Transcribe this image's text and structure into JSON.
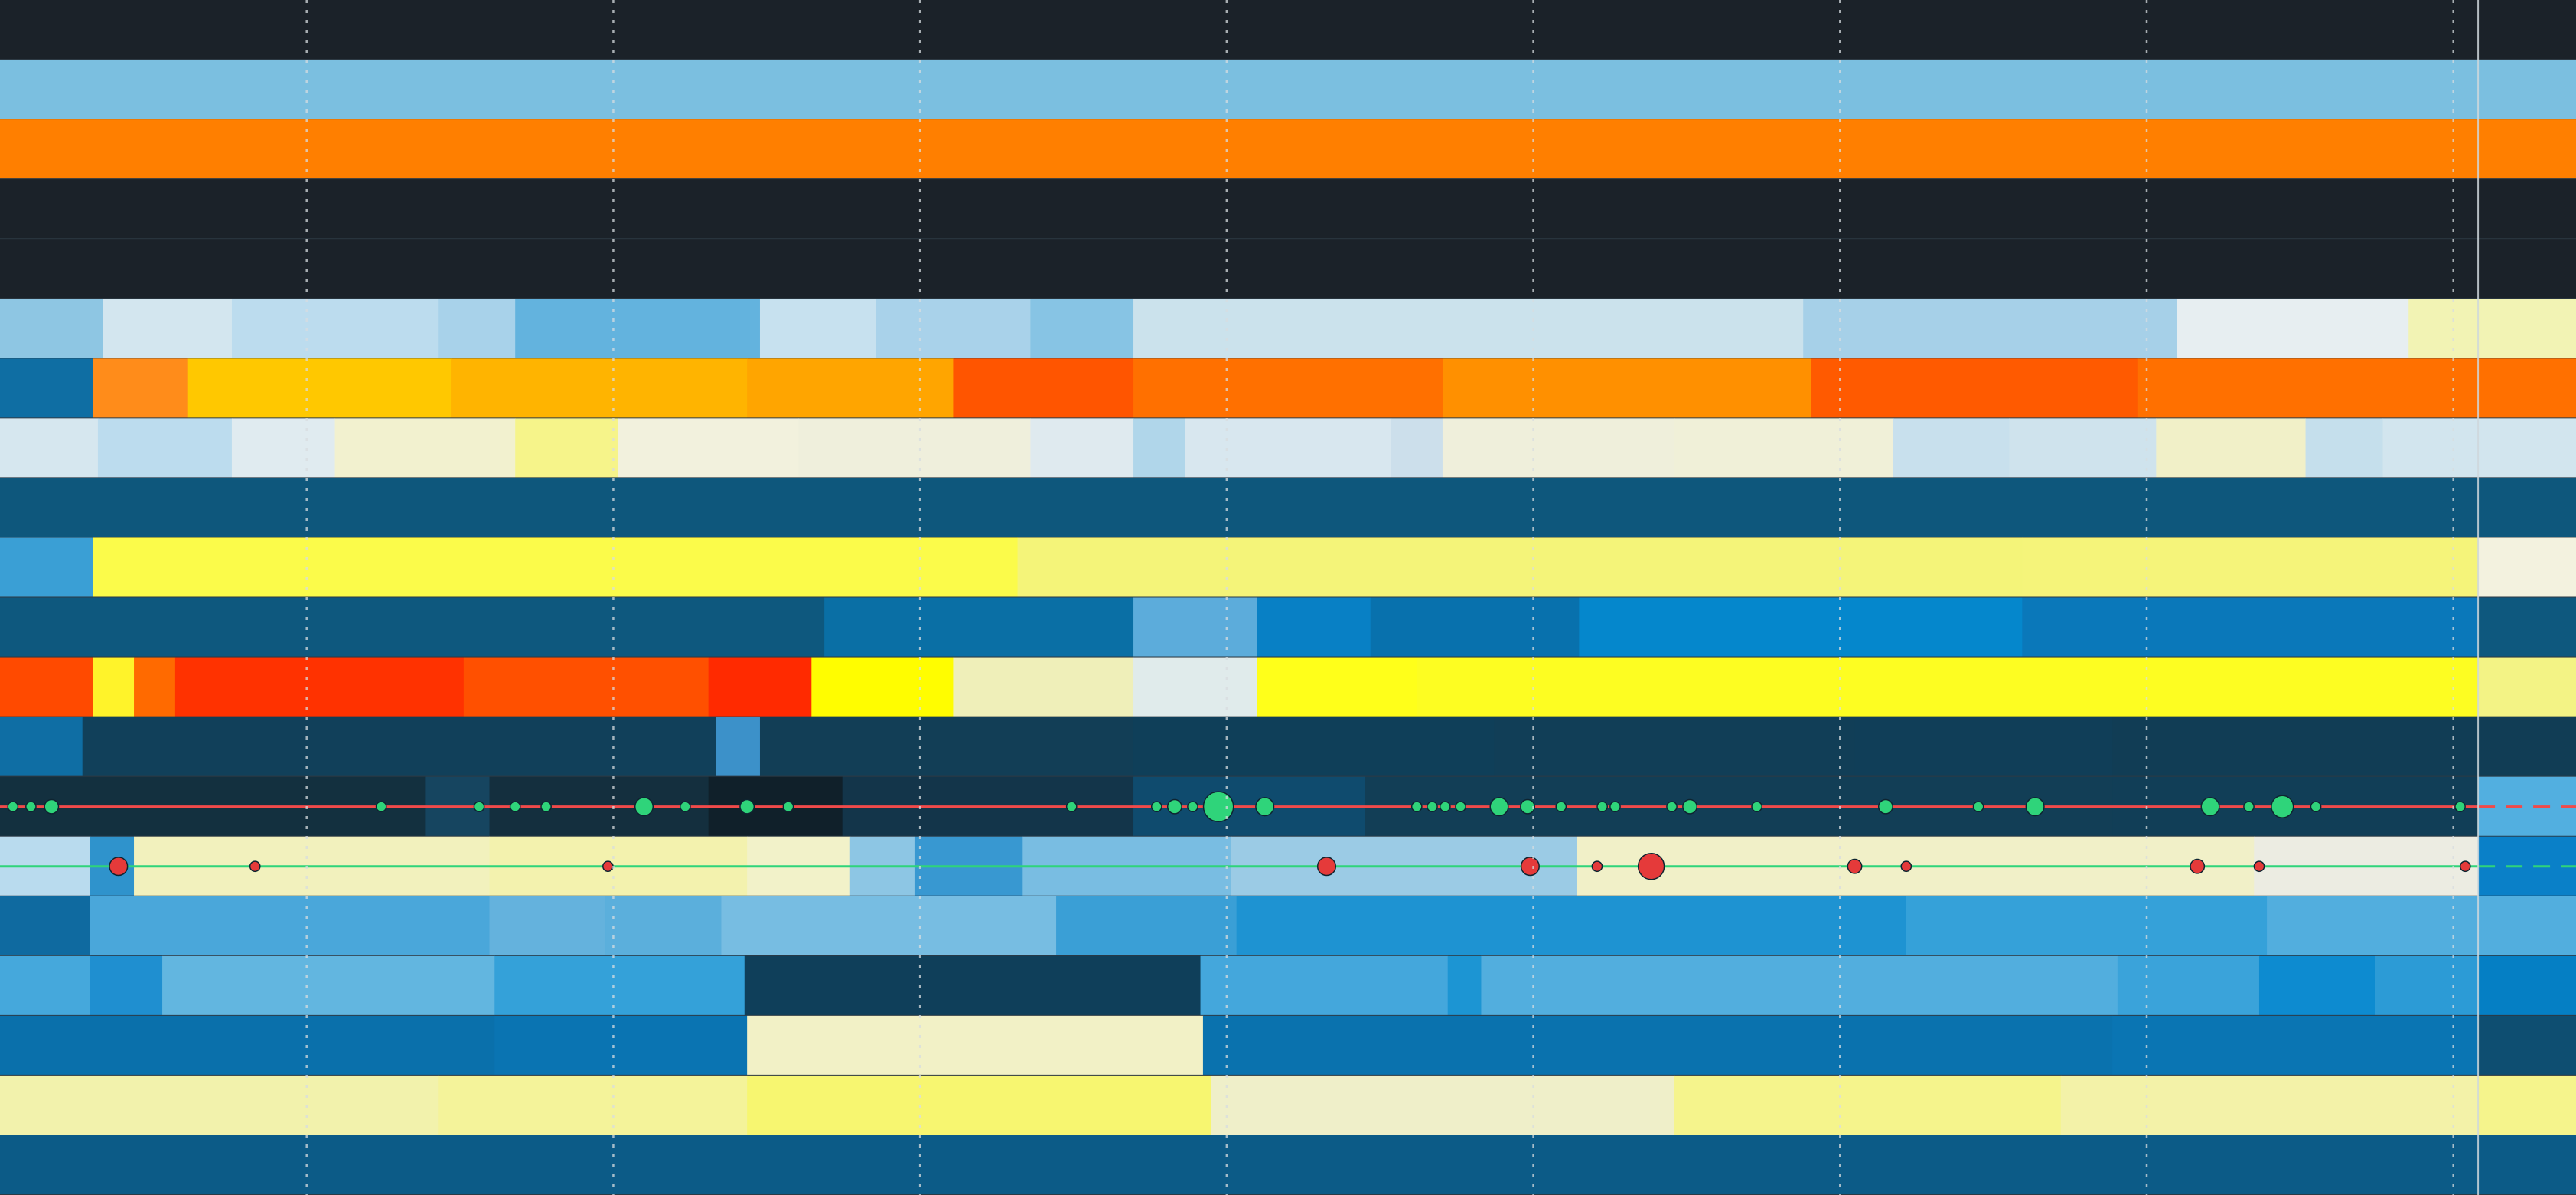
{
  "chart_data": {
    "type": "heatmap",
    "title": "",
    "xlabel": "",
    "ylabel": "",
    "grid": "vertical dashed",
    "x_range": [
      0,
      1
    ],
    "current_position": 0.962,
    "rows": [
      {
        "segments": [
          {
            "start": 0.0,
            "end": 1.0,
            "color": "#1b2229"
          }
        ]
      },
      {
        "segments": [
          {
            "start": 0.0,
            "end": 1.0,
            "color": "#7bbfe0"
          }
        ]
      },
      {
        "segments": [
          {
            "start": 0.0,
            "end": 1.0,
            "color": "#ff7f00"
          }
        ]
      },
      {
        "segments": [
          {
            "start": 0.0,
            "end": 1.0,
            "color": "#1b2229"
          }
        ]
      },
      {
        "segments": [
          {
            "start": 0.0,
            "end": 1.0,
            "color": "#1b2229"
          }
        ]
      },
      {
        "segments": [
          {
            "start": 0.0,
            "end": 0.04,
            "color": "#8ec6e3"
          },
          {
            "start": 0.04,
            "end": 0.09,
            "color": "#d3e6ef"
          },
          {
            "start": 0.09,
            "end": 0.17,
            "color": "#bcdcee"
          },
          {
            "start": 0.17,
            "end": 0.2,
            "color": "#a8d2ea"
          },
          {
            "start": 0.2,
            "end": 0.295,
            "color": "#63b3de"
          },
          {
            "start": 0.295,
            "end": 0.34,
            "color": "#c7e1ef"
          },
          {
            "start": 0.34,
            "end": 0.4,
            "color": "#a9d2ea"
          },
          {
            "start": 0.4,
            "end": 0.44,
            "color": "#87c4e4"
          },
          {
            "start": 0.44,
            "end": 0.7,
            "color": "#cbe2ec"
          },
          {
            "start": 0.7,
            "end": 0.845,
            "color": "#a6d0e8"
          },
          {
            "start": 0.845,
            "end": 0.935,
            "color": "#e7eef1"
          },
          {
            "start": 0.935,
            "end": 1.0,
            "color": "#f2f3b4"
          }
        ]
      },
      {
        "segments": [
          {
            "start": 0.0,
            "end": 0.036,
            "color": "#0f6ea3"
          },
          {
            "start": 0.036,
            "end": 0.073,
            "color": "#ff8c1a"
          },
          {
            "start": 0.073,
            "end": 0.175,
            "color": "#ffc800"
          },
          {
            "start": 0.175,
            "end": 0.29,
            "color": "#ffb400"
          },
          {
            "start": 0.29,
            "end": 0.37,
            "color": "#ffa500"
          },
          {
            "start": 0.37,
            "end": 0.44,
            "color": "#ff5500"
          },
          {
            "start": 0.44,
            "end": 0.56,
            "color": "#ff7000"
          },
          {
            "start": 0.56,
            "end": 0.703,
            "color": "#ff9000"
          },
          {
            "start": 0.703,
            "end": 0.83,
            "color": "#ff5a00"
          },
          {
            "start": 0.83,
            "end": 1.0,
            "color": "#ff7000"
          }
        ]
      },
      {
        "segments": [
          {
            "start": 0.0,
            "end": 0.038,
            "color": "#d6e7ef"
          },
          {
            "start": 0.038,
            "end": 0.09,
            "color": "#bcdcee"
          },
          {
            "start": 0.09,
            "end": 0.13,
            "color": "#e0ebf0"
          },
          {
            "start": 0.13,
            "end": 0.2,
            "color": "#f2f1cf"
          },
          {
            "start": 0.2,
            "end": 0.24,
            "color": "#f6f48a"
          },
          {
            "start": 0.24,
            "end": 0.31,
            "color": "#f2f1dd"
          },
          {
            "start": 0.31,
            "end": 0.4,
            "color": "#efefdc"
          },
          {
            "start": 0.4,
            "end": 0.44,
            "color": "#dfeaef"
          },
          {
            "start": 0.44,
            "end": 0.46,
            "color": "#b0d6ea"
          },
          {
            "start": 0.46,
            "end": 0.54,
            "color": "#d8e7ef"
          },
          {
            "start": 0.54,
            "end": 0.56,
            "color": "#ccdfeb"
          },
          {
            "start": 0.56,
            "end": 0.65,
            "color": "#efefdb"
          },
          {
            "start": 0.65,
            "end": 0.735,
            "color": "#f0f0d8"
          },
          {
            "start": 0.735,
            "end": 0.78,
            "color": "#c8e0ed"
          },
          {
            "start": 0.78,
            "end": 0.837,
            "color": "#cfe3ed"
          },
          {
            "start": 0.837,
            "end": 0.895,
            "color": "#f1f0c8"
          },
          {
            "start": 0.895,
            "end": 0.925,
            "color": "#c5dfec"
          },
          {
            "start": 0.925,
            "end": 1.0,
            "color": "#d2e5ee"
          }
        ]
      },
      {
        "segments": [
          {
            "start": 0.0,
            "end": 1.0,
            "color": "#0e577c"
          }
        ]
      },
      {
        "segments": [
          {
            "start": 0.0,
            "end": 0.036,
            "color": "#3a9fd5"
          },
          {
            "start": 0.036,
            "end": 0.395,
            "color": "#fbfb4a"
          },
          {
            "start": 0.395,
            "end": 0.785,
            "color": "#f4f479"
          },
          {
            "start": 0.785,
            "end": 0.962,
            "color": "#f5f47a"
          },
          {
            "start": 0.962,
            "end": 1.0,
            "color": "#f3f2df"
          }
        ]
      },
      {
        "segments": [
          {
            "start": 0.0,
            "end": 0.32,
            "color": "#0e587e"
          },
          {
            "start": 0.32,
            "end": 0.44,
            "color": "#0a6fa5"
          },
          {
            "start": 0.44,
            "end": 0.488,
            "color": "#5cacdb"
          },
          {
            "start": 0.488,
            "end": 0.532,
            "color": "#0880c5"
          },
          {
            "start": 0.532,
            "end": 0.613,
            "color": "#0871ad"
          },
          {
            "start": 0.613,
            "end": 0.785,
            "color": "#0587cc"
          },
          {
            "start": 0.785,
            "end": 0.962,
            "color": "#0a78ba"
          },
          {
            "start": 0.962,
            "end": 1.0,
            "color": "#0e587e"
          }
        ]
      },
      {
        "segments": [
          {
            "start": 0.0,
            "end": 0.036,
            "color": "#ff4a00"
          },
          {
            "start": 0.036,
            "end": 0.052,
            "color": "#fff32a"
          },
          {
            "start": 0.052,
            "end": 0.068,
            "color": "#ff6a00"
          },
          {
            "start": 0.068,
            "end": 0.18,
            "color": "#ff3200"
          },
          {
            "start": 0.18,
            "end": 0.275,
            "color": "#ff5000"
          },
          {
            "start": 0.275,
            "end": 0.315,
            "color": "#ff2a00"
          },
          {
            "start": 0.315,
            "end": 0.37,
            "color": "#fffd00"
          },
          {
            "start": 0.37,
            "end": 0.44,
            "color": "#efefb9"
          },
          {
            "start": 0.44,
            "end": 0.488,
            "color": "#e0ebeb"
          },
          {
            "start": 0.488,
            "end": 0.55,
            "color": "#ffff1a"
          },
          {
            "start": 0.55,
            "end": 0.962,
            "color": "#fdfd22"
          },
          {
            "start": 0.962,
            "end": 1.0,
            "color": "#f3f385"
          }
        ]
      },
      {
        "segments": [
          {
            "start": 0.0,
            "end": 0.032,
            "color": "#0f6ea4"
          },
          {
            "start": 0.032,
            "end": 0.278,
            "color": "#11405a"
          },
          {
            "start": 0.278,
            "end": 0.295,
            "color": "#3c91c9"
          },
          {
            "start": 0.295,
            "end": 0.44,
            "color": "#123e56"
          },
          {
            "start": 0.44,
            "end": 0.58,
            "color": "#0f3f59"
          },
          {
            "start": 0.58,
            "end": 0.72,
            "color": "#113e57"
          },
          {
            "start": 0.72,
            "end": 0.82,
            "color": "#103e58"
          },
          {
            "start": 0.82,
            "end": 1.0,
            "color": "#113d55"
          }
        ]
      },
      {
        "segments": [
          {
            "start": 0.0,
            "end": 0.165,
            "color": "#13303f"
          },
          {
            "start": 0.165,
            "end": 0.19,
            "color": "#164560"
          },
          {
            "start": 0.19,
            "end": 0.275,
            "color": "#142f3e"
          },
          {
            "start": 0.275,
            "end": 0.327,
            "color": "#10202a"
          },
          {
            "start": 0.327,
            "end": 0.44,
            "color": "#13354a"
          },
          {
            "start": 0.44,
            "end": 0.53,
            "color": "#0f4b6e"
          },
          {
            "start": 0.53,
            "end": 0.82,
            "color": "#123e56"
          },
          {
            "start": 0.82,
            "end": 0.962,
            "color": "#113e57"
          },
          {
            "start": 0.962,
            "end": 1.0,
            "color": "#52afe0"
          }
        ]
      },
      {
        "segments": [
          {
            "start": 0.0,
            "end": 0.035,
            "color": "#b9dbee"
          },
          {
            "start": 0.035,
            "end": 0.052,
            "color": "#2f93cc"
          },
          {
            "start": 0.052,
            "end": 0.19,
            "color": "#f2f1bd"
          },
          {
            "start": 0.19,
            "end": 0.29,
            "color": "#f3f2ae"
          },
          {
            "start": 0.29,
            "end": 0.33,
            "color": "#f2f2c9"
          },
          {
            "start": 0.33,
            "end": 0.355,
            "color": "#8dc6e4"
          },
          {
            "start": 0.355,
            "end": 0.397,
            "color": "#3898d1"
          },
          {
            "start": 0.397,
            "end": 0.478,
            "color": "#79bde2"
          },
          {
            "start": 0.478,
            "end": 0.612,
            "color": "#9bcbe5"
          },
          {
            "start": 0.612,
            "end": 0.875,
            "color": "#f1f0c8"
          },
          {
            "start": 0.875,
            "end": 0.962,
            "color": "#ecece2"
          },
          {
            "start": 0.962,
            "end": 1.0,
            "color": "#0a80c8"
          }
        ]
      },
      {
        "segments": [
          {
            "start": 0.0,
            "end": 0.035,
            "color": "#0f6aa0"
          },
          {
            "start": 0.035,
            "end": 0.19,
            "color": "#4aa7da"
          },
          {
            "start": 0.19,
            "end": 0.235,
            "color": "#64b2dd"
          },
          {
            "start": 0.235,
            "end": 0.28,
            "color": "#5bafdc"
          },
          {
            "start": 0.28,
            "end": 0.41,
            "color": "#77bde2"
          },
          {
            "start": 0.41,
            "end": 0.48,
            "color": "#3a9fd6"
          },
          {
            "start": 0.48,
            "end": 0.74,
            "color": "#1e93d2"
          },
          {
            "start": 0.74,
            "end": 0.88,
            "color": "#35a1d9"
          },
          {
            "start": 0.88,
            "end": 1.0,
            "color": "#52aede"
          }
        ]
      },
      {
        "segments": [
          {
            "start": 0.0,
            "end": 0.035,
            "color": "#45a8dc"
          },
          {
            "start": 0.035,
            "end": 0.063,
            "color": "#1f8fd0"
          },
          {
            "start": 0.063,
            "end": 0.192,
            "color": "#62b6e0"
          },
          {
            "start": 0.192,
            "end": 0.289,
            "color": "#34a1d9"
          },
          {
            "start": 0.289,
            "end": 0.466,
            "color": "#0f3f5a"
          },
          {
            "start": 0.466,
            "end": 0.562,
            "color": "#44a7dc"
          },
          {
            "start": 0.562,
            "end": 0.575,
            "color": "#1c95d3"
          },
          {
            "start": 0.575,
            "end": 0.822,
            "color": "#52aede"
          },
          {
            "start": 0.822,
            "end": 0.877,
            "color": "#3aa3da"
          },
          {
            "start": 0.877,
            "end": 0.922,
            "color": "#0d8bd0"
          },
          {
            "start": 0.922,
            "end": 0.962,
            "color": "#2c9bd6"
          },
          {
            "start": 0.962,
            "end": 1.0,
            "color": "#057fc4"
          }
        ]
      },
      {
        "segments": [
          {
            "start": 0.0,
            "end": 0.192,
            "color": "#0a70ab"
          },
          {
            "start": 0.192,
            "end": 0.29,
            "color": "#0a74b2"
          },
          {
            "start": 0.29,
            "end": 0.467,
            "color": "#f2f1c6"
          },
          {
            "start": 0.467,
            "end": 0.82,
            "color": "#0a72ae"
          },
          {
            "start": 0.82,
            "end": 0.962,
            "color": "#0a75b3"
          },
          {
            "start": 0.962,
            "end": 1.0,
            "color": "#0e4e71"
          }
        ]
      },
      {
        "segments": [
          {
            "start": 0.0,
            "end": 0.17,
            "color": "#f2f2ac"
          },
          {
            "start": 0.17,
            "end": 0.29,
            "color": "#f4f39a"
          },
          {
            "start": 0.29,
            "end": 0.47,
            "color": "#f7f670"
          },
          {
            "start": 0.47,
            "end": 0.65,
            "color": "#efefc9"
          },
          {
            "start": 0.65,
            "end": 0.8,
            "color": "#f5f48c"
          },
          {
            "start": 0.8,
            "end": 0.962,
            "color": "#f3f2a8"
          },
          {
            "start": 0.962,
            "end": 1.0,
            "color": "#f5f48c"
          }
        ]
      },
      {
        "segments": [
          {
            "start": 0.0,
            "end": 1.0,
            "color": "#0c5b87"
          }
        ]
      }
    ],
    "event_tracks": [
      {
        "row": 13,
        "line_color": "#f04a4a",
        "marker_color": "#2fd47a",
        "markers": [
          {
            "x": 0.005,
            "size": 1
          },
          {
            "x": 0.012,
            "size": 1
          },
          {
            "x": 0.02,
            "size": 2
          },
          {
            "x": 0.148,
            "size": 1
          },
          {
            "x": 0.186,
            "size": 1
          },
          {
            "x": 0.2,
            "size": 1
          },
          {
            "x": 0.212,
            "size": 1
          },
          {
            "x": 0.25,
            "size": 3
          },
          {
            "x": 0.266,
            "size": 1
          },
          {
            "x": 0.29,
            "size": 2
          },
          {
            "x": 0.306,
            "size": 1
          },
          {
            "x": 0.416,
            "size": 1
          },
          {
            "x": 0.449,
            "size": 1
          },
          {
            "x": 0.456,
            "size": 2
          },
          {
            "x": 0.463,
            "size": 1
          },
          {
            "x": 0.473,
            "size": 6
          },
          {
            "x": 0.491,
            "size": 3
          },
          {
            "x": 0.55,
            "size": 1
          },
          {
            "x": 0.556,
            "size": 1
          },
          {
            "x": 0.561,
            "size": 1
          },
          {
            "x": 0.567,
            "size": 1
          },
          {
            "x": 0.582,
            "size": 3
          },
          {
            "x": 0.593,
            "size": 2
          },
          {
            "x": 0.606,
            "size": 1
          },
          {
            "x": 0.622,
            "size": 1
          },
          {
            "x": 0.627,
            "size": 1
          },
          {
            "x": 0.649,
            "size": 1
          },
          {
            "x": 0.656,
            "size": 2
          },
          {
            "x": 0.682,
            "size": 1
          },
          {
            "x": 0.732,
            "size": 2
          },
          {
            "x": 0.768,
            "size": 1
          },
          {
            "x": 0.79,
            "size": 3
          },
          {
            "x": 0.858,
            "size": 3
          },
          {
            "x": 0.873,
            "size": 1
          },
          {
            "x": 0.886,
            "size": 4
          },
          {
            "x": 0.899,
            "size": 1
          },
          {
            "x": 0.955,
            "size": 1
          }
        ]
      },
      {
        "row": 14,
        "line_color": "#2fd47a",
        "marker_color": "#e53a3a",
        "markers": [
          {
            "x": 0.046,
            "size": 3
          },
          {
            "x": 0.099,
            "size": 1
          },
          {
            "x": 0.236,
            "size": 1
          },
          {
            "x": 0.515,
            "size": 3
          },
          {
            "x": 0.594,
            "size": 3
          },
          {
            "x": 0.62,
            "size": 1
          },
          {
            "x": 0.641,
            "size": 5
          },
          {
            "x": 0.72,
            "size": 2
          },
          {
            "x": 0.74,
            "size": 1
          },
          {
            "x": 0.853,
            "size": 2
          },
          {
            "x": 0.877,
            "size": 1
          },
          {
            "x": 0.957,
            "size": 1
          }
        ]
      }
    ]
  }
}
